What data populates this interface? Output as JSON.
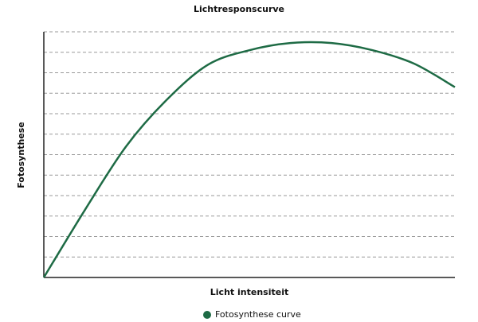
{
  "chart_data": {
    "type": "line",
    "title": "Lichtresponscurve",
    "x_label": "Licht intensiteit",
    "y_label": "Fotosynthese",
    "x": [
      0,
      1,
      2,
      3,
      4,
      5,
      6,
      7,
      8,
      9,
      10
    ],
    "series": [
      {
        "name": "Fotosynthese curve",
        "color": "#1e6b45",
        "values": [
          0,
          3.3,
          6.4,
          8.7,
          10.4,
          11.1,
          11.45,
          11.45,
          11.1,
          10.45,
          9.3
        ]
      }
    ],
    "xlim": [
      0,
      10
    ],
    "ylim": [
      0,
      12
    ],
    "yticks": [
      0,
      1,
      2,
      3,
      4,
      5,
      6,
      7,
      8,
      9,
      10,
      11,
      12
    ],
    "grid": true,
    "show_tick_labels": false,
    "legend": "bottom"
  }
}
